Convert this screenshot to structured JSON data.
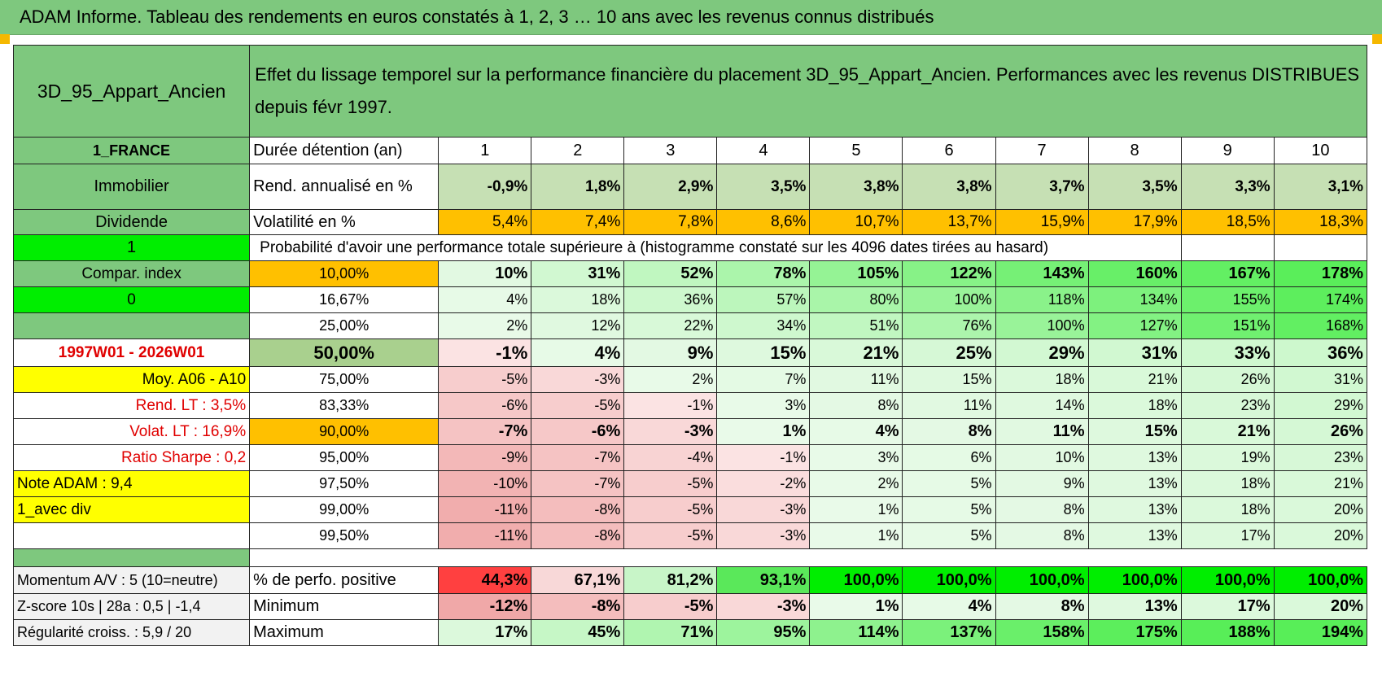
{
  "banner": "ADAM Informe. Tableau des rendements en euros constatés à 1, 2, 3 … 10 ans avec les revenus connus distribués",
  "colors": {
    "header_green": "#7ec87e",
    "bright_green": "#00ee00",
    "yellow": "#ffff00",
    "orange": "#ffc000",
    "red_text": "#e00000",
    "deep_red": "#ff4040"
  },
  "asset_name": "3D_95_Appart_Ancien",
  "description": "Effet du lissage temporel sur la performance financière du placement 3D_95_Appart_Ancien. Performances avec les revenus DISTRIBUES depuis févr 1997.",
  "side": {
    "country": "1_FRANCE",
    "asset_class": "Immobilier",
    "income": "Dividende",
    "one": "1",
    "compar": "Compar. index",
    "zero": "0",
    "period": "1997W01 - 2026W01",
    "moy": "Moy. A06 - A10",
    "rend_lt": "Rend. LT :    3,5%",
    "volat_lt": "Volat. LT :    16,9%",
    "sharpe": "Ratio Sharpe :     0,2",
    "note": "Note ADAM : 9,4",
    "avec_div": "1_avec div",
    "momentum": "Momentum A/V : 5 (10=neutre)",
    "zscore": "Z-score 10s | 28a : 0,5 | -1,4",
    "regularite": "Régularité croiss. : 5,9 / 20"
  },
  "duration_label": "Durée détention (an)",
  "years": [
    "1",
    "2",
    "3",
    "4",
    "5",
    "6",
    "7",
    "8",
    "9",
    "10"
  ],
  "rend_label": "Rend. annualisé en %",
  "rend_values": [
    "-0,9%",
    "1,8%",
    "2,9%",
    "3,5%",
    "3,8%",
    "3,8%",
    "3,7%",
    "3,5%",
    "3,3%",
    "3,1%"
  ],
  "vol_label": "Volatilité en %",
  "vol_values": [
    "5,4%",
    "7,4%",
    "7,8%",
    "8,6%",
    "10,7%",
    "13,7%",
    "15,9%",
    "17,9%",
    "18,5%",
    "18,3%"
  ],
  "prob_title": "Probabilité d'avoir une performance totale supérieure à (histogramme constaté sur les 4096 dates tirées au hasard)",
  "quantiles": [
    {
      "label": "10,00%",
      "values": [
        "10%",
        "31%",
        "52%",
        "78%",
        "105%",
        "122%",
        "143%",
        "160%",
        "167%",
        "178%"
      ]
    },
    {
      "label": "16,67%",
      "values": [
        "4%",
        "18%",
        "36%",
        "57%",
        "80%",
        "100%",
        "118%",
        "134%",
        "155%",
        "174%"
      ]
    },
    {
      "label": "25,00%",
      "values": [
        "2%",
        "12%",
        "22%",
        "34%",
        "51%",
        "76%",
        "100%",
        "127%",
        "151%",
        "168%"
      ]
    },
    {
      "label": "50,00%",
      "values": [
        "-1%",
        "4%",
        "9%",
        "15%",
        "21%",
        "25%",
        "29%",
        "31%",
        "33%",
        "36%"
      ]
    },
    {
      "label": "75,00%",
      "values": [
        "-5%",
        "-3%",
        "2%",
        "7%",
        "11%",
        "15%",
        "18%",
        "21%",
        "26%",
        "31%"
      ]
    },
    {
      "label": "83,33%",
      "values": [
        "-6%",
        "-5%",
        "-1%",
        "3%",
        "8%",
        "11%",
        "14%",
        "18%",
        "23%",
        "29%"
      ]
    },
    {
      "label": "90,00%",
      "values": [
        "-7%",
        "-6%",
        "-3%",
        "1%",
        "4%",
        "8%",
        "11%",
        "15%",
        "21%",
        "26%"
      ]
    },
    {
      "label": "95,00%",
      "values": [
        "-9%",
        "-7%",
        "-4%",
        "-1%",
        "3%",
        "6%",
        "10%",
        "13%",
        "19%",
        "23%"
      ]
    },
    {
      "label": "97,50%",
      "values": [
        "-10%",
        "-7%",
        "-5%",
        "-2%",
        "2%",
        "5%",
        "9%",
        "13%",
        "18%",
        "21%"
      ]
    },
    {
      "label": "99,00%",
      "values": [
        "-11%",
        "-8%",
        "-5%",
        "-3%",
        "1%",
        "5%",
        "8%",
        "13%",
        "18%",
        "20%"
      ]
    },
    {
      "label": "99,50%",
      "values": [
        "-11%",
        "-8%",
        "-5%",
        "-3%",
        "1%",
        "5%",
        "8%",
        "13%",
        "17%",
        "20%"
      ]
    }
  ],
  "pos_label": "% de perfo. positive",
  "pos_values": [
    "44,3%",
    "67,1%",
    "81,2%",
    "93,1%",
    "100,0%",
    "100,0%",
    "100,0%",
    "100,0%",
    "100,0%",
    "100,0%"
  ],
  "min_label": "Minimum",
  "min_values": [
    "-12%",
    "-8%",
    "-5%",
    "-3%",
    "1%",
    "4%",
    "8%",
    "13%",
    "17%",
    "20%"
  ],
  "max_label": "Maximum",
  "max_values": [
    "17%",
    "45%",
    "71%",
    "95%",
    "114%",
    "137%",
    "158%",
    "175%",
    "188%",
    "194%"
  ]
}
